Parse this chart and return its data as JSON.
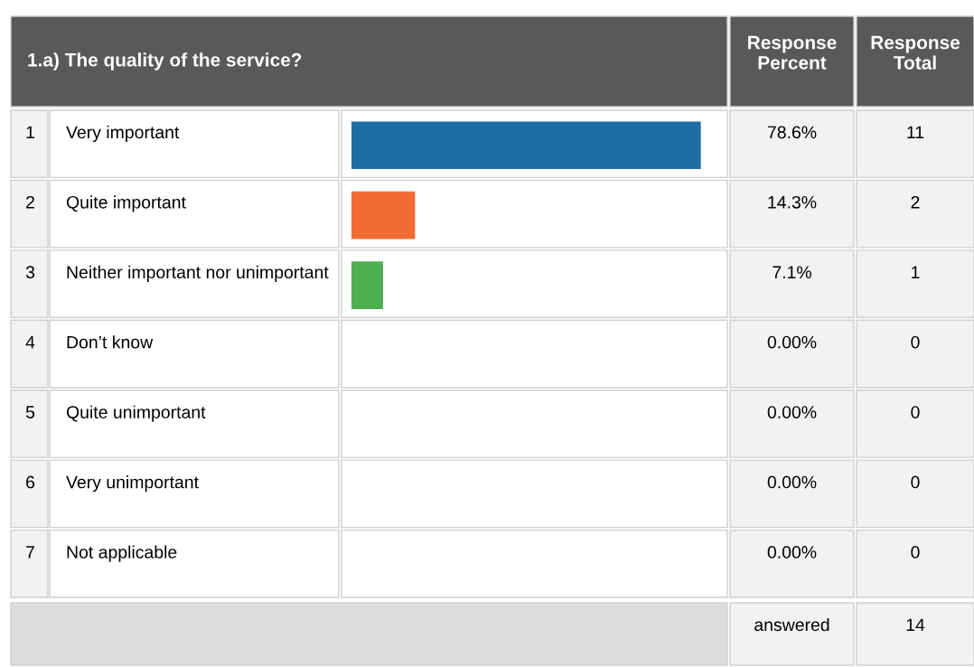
{
  "chart_data": {
    "type": "bar",
    "orientation": "horizontal",
    "title": "1.a) The quality of the service?",
    "categories": [
      "Very important",
      "Quite important",
      "Neither important nor unimportant",
      "Don’t know",
      "Quite unimportant",
      "Very unimportant",
      "Not applicable"
    ],
    "values": [
      78.6,
      14.3,
      7.1,
      0,
      0,
      0,
      0
    ],
    "value_labels": [
      "78.6%",
      "14.3%",
      "7.1%",
      "0.00%",
      "0.00%",
      "0.00%",
      "0.00%"
    ],
    "colors": [
      "#1c6ea4",
      "#f26b35",
      "#4cb050",
      "#999999",
      "#999999",
      "#999999",
      "#999999"
    ],
    "tick_labels": false,
    "grid": false,
    "legend": false,
    "annotations": [
      "Response\nPercent",
      "Response\nTotal",
      "1",
      "2",
      "3",
      "4",
      "5",
      "6",
      "7",
      "11",
      "2",
      "1",
      "0",
      "0",
      "0",
      "0",
      "answered",
      "14"
    ]
  }
}
